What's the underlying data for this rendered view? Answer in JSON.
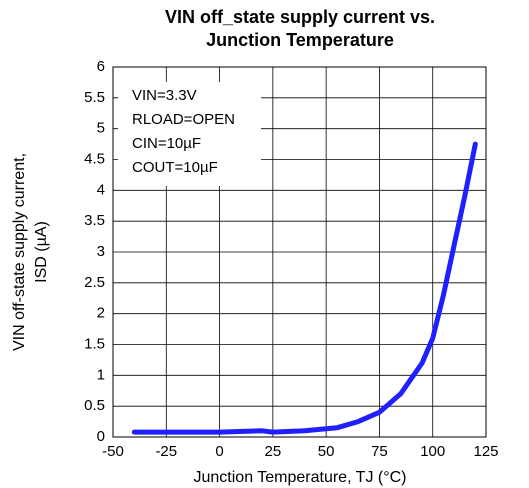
{
  "chart_data": {
    "type": "line",
    "title": [
      "VIN off_state supply current vs.",
      "Junction Temperature"
    ],
    "x_label": "Junction Temperature, TJ (°C)",
    "y_label": [
      "VIN off-state supply current,",
      "ISD (µA)"
    ],
    "annotations": [
      "VIN=3.3V",
      "RLOAD=OPEN",
      "CIN=10µF",
      "COUT=10µF"
    ],
    "x": [
      -40,
      -25,
      0,
      20,
      25,
      40,
      55,
      65,
      75,
      85,
      95,
      100,
      105,
      110,
      115,
      120
    ],
    "series": [
      {
        "name": "ISD",
        "color": "#1f1fff",
        "values": [
          0.08,
          0.08,
          0.08,
          0.1,
          0.08,
          0.1,
          0.15,
          0.25,
          0.4,
          0.7,
          1.2,
          1.6,
          2.3,
          3.1,
          3.9,
          4.75
        ]
      }
    ],
    "xlim": [
      -50,
      125
    ],
    "xticks": [
      -50,
      -25,
      0,
      25,
      50,
      75,
      100,
      125
    ],
    "ylim": [
      0,
      6
    ],
    "yticks": [
      0,
      0.5,
      1,
      1.5,
      2,
      2.5,
      3,
      3.5,
      4,
      4.5,
      5,
      5.5,
      6
    ],
    "grid": true
  }
}
